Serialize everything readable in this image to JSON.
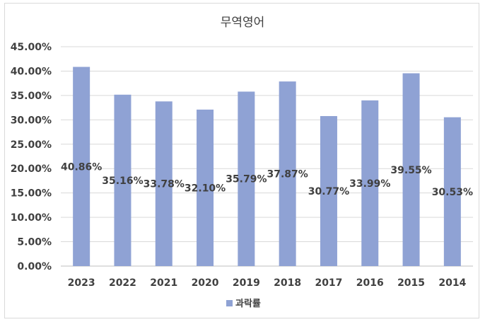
{
  "chart_data": {
    "type": "bar",
    "title": "무역영어",
    "categories": [
      "2023",
      "2022",
      "2021",
      "2020",
      "2019",
      "2018",
      "2017",
      "2016",
      "2015",
      "2014"
    ],
    "series": [
      {
        "name": "과락률",
        "values": [
          40.86,
          35.16,
          33.78,
          32.1,
          35.79,
          37.87,
          30.77,
          33.99,
          39.55,
          30.53
        ],
        "labels": [
          "40.86%",
          "35.16%",
          "33.78%",
          "32.10%",
          "35.79%",
          "37.87%",
          "30.77%",
          "33.99%",
          "39.55%",
          "30.53%"
        ],
        "color": "#8fa2d4"
      }
    ],
    "ylim": [
      0,
      45
    ],
    "yticks": [
      "0.00%",
      "5.00%",
      "10.00%",
      "15.00%",
      "20.00%",
      "25.00%",
      "30.00%",
      "35.00%",
      "40.00%",
      "45.00%"
    ],
    "ytick_values": [
      0,
      5,
      10,
      15,
      20,
      25,
      30,
      35,
      40,
      45
    ],
    "grid": true,
    "legend": "bottom"
  }
}
